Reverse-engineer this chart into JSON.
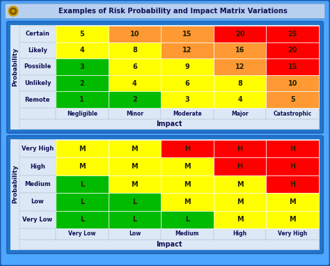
{
  "title": "Examples of Risk Probability and Impact Matrix Variations",
  "bg_outer": "#4da6ff",
  "bg_inner": "#2277cc",
  "title_bg": "#b8d0f0",
  "panel_bg": "#c8daf0",
  "cell_label_bg": "#d8e8f8",
  "table1": {
    "row_labels": [
      "Certain",
      "Likely",
      "Possible",
      "Unlikely",
      "Remote"
    ],
    "col_labels": [
      "Negligible",
      "Minor",
      "Moderate",
      "Major",
      "Catastrophic"
    ],
    "values": [
      [
        "5",
        "10",
        "15",
        "20",
        "25"
      ],
      [
        "4",
        "8",
        "12",
        "16",
        "20"
      ],
      [
        "3",
        "6",
        "9",
        "12",
        "15"
      ],
      [
        "2",
        "4",
        "6",
        "8",
        "10"
      ],
      [
        "1",
        "2",
        "3",
        "4",
        "5"
      ]
    ],
    "colors": [
      [
        "#ffff00",
        "#ff9933",
        "#ff9933",
        "#ff0000",
        "#ff0000"
      ],
      [
        "#ffff00",
        "#ffff00",
        "#ff9933",
        "#ff9933",
        "#ff0000"
      ],
      [
        "#00bb00",
        "#ffff00",
        "#ffff00",
        "#ff9933",
        "#ff0000"
      ],
      [
        "#00bb00",
        "#ffff00",
        "#ffff00",
        "#ffff00",
        "#ff9933"
      ],
      [
        "#00bb00",
        "#00bb00",
        "#ffff00",
        "#ffff00",
        "#ff9933"
      ]
    ],
    "ylabel": "Probability",
    "xlabel": "Impact"
  },
  "table2": {
    "row_labels": [
      "Very High",
      "High",
      "Medium",
      "Low",
      "Very Low"
    ],
    "col_labels": [
      "Very Low",
      "Low",
      "Medium",
      "High",
      "Very High"
    ],
    "values": [
      [
        "M",
        "M",
        "H",
        "H",
        "H"
      ],
      [
        "M",
        "M",
        "M",
        "H",
        "H"
      ],
      [
        "L",
        "M",
        "M",
        "M",
        "H"
      ],
      [
        "L",
        "L",
        "M",
        "M",
        "M"
      ],
      [
        "L",
        "L",
        "L",
        "M",
        "M"
      ]
    ],
    "colors": [
      [
        "#ffff00",
        "#ffff00",
        "#ff0000",
        "#ff0000",
        "#ff0000"
      ],
      [
        "#ffff00",
        "#ffff00",
        "#ffff00",
        "#ff0000",
        "#ff0000"
      ],
      [
        "#00bb00",
        "#ffff00",
        "#ffff00",
        "#ffff00",
        "#ff0000"
      ],
      [
        "#00bb00",
        "#00bb00",
        "#ffff00",
        "#ffff00",
        "#ffff00"
      ],
      [
        "#00bb00",
        "#00bb00",
        "#00bb00",
        "#ffff00",
        "#ffff00"
      ]
    ],
    "ylabel": "Probability",
    "xlabel": "Impact"
  }
}
